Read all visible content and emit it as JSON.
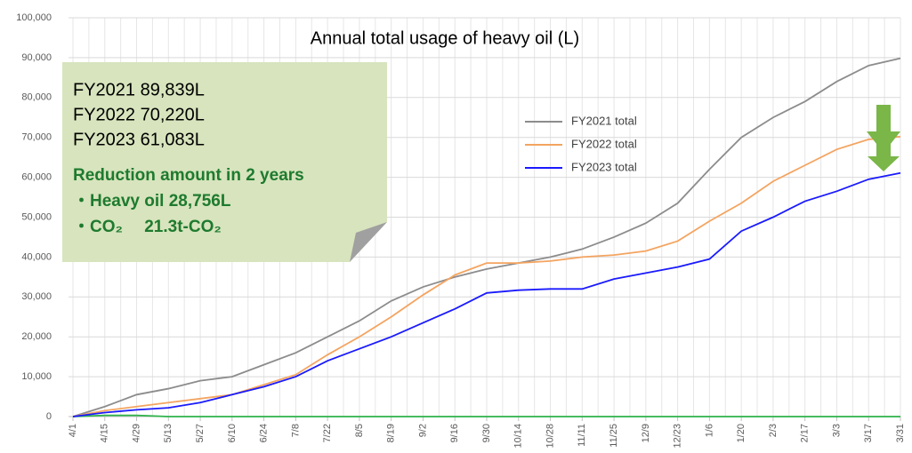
{
  "chart_data": {
    "type": "line",
    "title": "Annual total usage of heavy oil (L)",
    "categories": [
      "4/1",
      "4/15",
      "4/29",
      "5/13",
      "5/27",
      "6/10",
      "6/24",
      "7/8",
      "7/22",
      "8/5",
      "8/19",
      "9/2",
      "9/16",
      "9/30",
      "10/14",
      "10/28",
      "11/11",
      "11/25",
      "12/9",
      "12/23",
      "1/6",
      "1/20",
      "2/3",
      "2/17",
      "3/3",
      "3/17",
      "3/31"
    ],
    "series": [
      {
        "name": "FY2021 total",
        "color": "#8c8c8c",
        "values": [
          0,
          2500,
          5500,
          7000,
          9000,
          10000,
          13000,
          16000,
          20000,
          24000,
          29000,
          32500,
          35000,
          37000,
          38500,
          40000,
          42000,
          45000,
          48500,
          53500,
          62000,
          70000,
          75000,
          79000,
          84000,
          88000,
          89839
        ]
      },
      {
        "name": "FY2022 total",
        "color": "#f4a460",
        "values": [
          0,
          1500,
          2500,
          3500,
          4500,
          5500,
          8000,
          10500,
          15500,
          20000,
          25000,
          30500,
          35500,
          38500,
          38500,
          39000,
          40000,
          40500,
          41500,
          44000,
          49000,
          53500,
          59000,
          63000,
          67000,
          69500,
          70220
        ]
      },
      {
        "name": "FY2023 total",
        "color": "#1a1aff",
        "values": [
          0,
          1000,
          1700,
          2200,
          3500,
          5500,
          7500,
          10000,
          14000,
          17000,
          20000,
          23500,
          27000,
          31000,
          31700,
          32000,
          32000,
          34500,
          36000,
          37500,
          39500,
          46500,
          50000,
          54000,
          56500,
          59500,
          61083
        ]
      },
      {
        "color": "#2db34a",
        "values": [
          0,
          300,
          300,
          0,
          0,
          0,
          0,
          0,
          0,
          0,
          0,
          0,
          0,
          0,
          0,
          0,
          0,
          0,
          0,
          0,
          0,
          0,
          0,
          0,
          0,
          0,
          0
        ]
      }
    ],
    "ylim": [
      0,
      100000
    ],
    "yticks": [
      0,
      {
        "value": 10000,
        "label": "10,000"
      },
      {
        "value": 20000,
        "label": "20,000"
      },
      {
        "value": 30000,
        "label": "30,000"
      },
      {
        "value": 40000,
        "label": "40,000"
      },
      {
        "value": 50000,
        "label": "50,000"
      },
      {
        "value": 60000,
        "label": "60,000"
      },
      {
        "value": 70000,
        "label": "70,000"
      },
      {
        "value": 80000,
        "label": "80,000"
      },
      {
        "value": 90000,
        "label": "90,000"
      },
      {
        "value": 100000,
        "label": "100,000"
      }
    ],
    "grid": true,
    "legend": "top",
    "annotations": [
      "FY2021  89,839L",
      "FY2022  70,220L",
      "FY2023  61,083L",
      "Reduction amount in 2 years",
      "・Heavy oil  28,756L",
      "・CO₂　 21.3t-CO₂"
    ]
  }
}
